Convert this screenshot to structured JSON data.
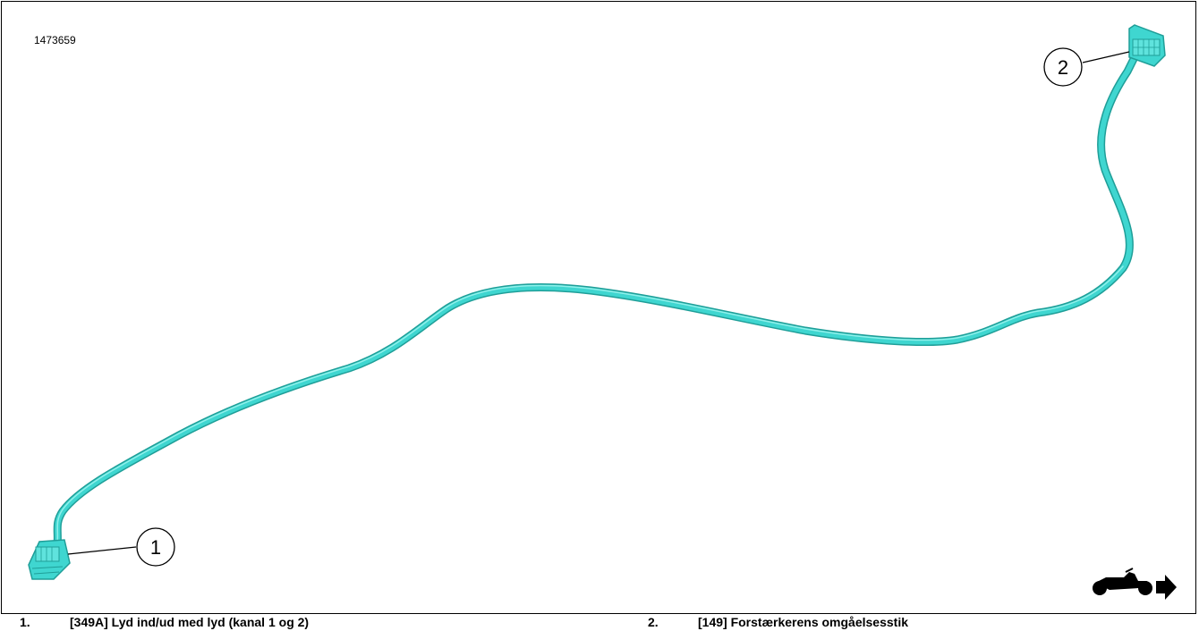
{
  "figure": {
    "id": "1473659",
    "cable_color": "#3fd6d0",
    "cable_shadow_color": "#1f9e98",
    "direction_icon": "motorcycle-forward-arrow-icon"
  },
  "callouts": [
    {
      "number": "1"
    },
    {
      "number": "2"
    }
  ],
  "legend": [
    {
      "number": "1.",
      "text": "[349A] Lyd ind/ud med lyd (kanal 1 og 2)"
    },
    {
      "number": "2.",
      "text": "[149] Forstærkerens omgåelsesstik"
    }
  ]
}
